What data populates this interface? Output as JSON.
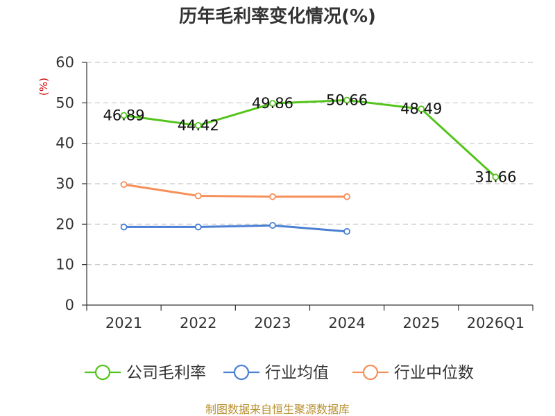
{
  "chart_data": {
    "type": "line",
    "title": "历年毛利率变化情况(%)",
    "ylabel": "(%)",
    "xlabel": "",
    "categories": [
      "2021",
      "2022",
      "2023",
      "2024",
      "2025",
      "2026Q1"
    ],
    "ylim": [
      0,
      60
    ],
    "yticks": [
      0,
      10,
      20,
      30,
      40,
      50,
      60
    ],
    "grid": true,
    "legend_position": "bottom",
    "series": [
      {
        "name": "公司毛利率",
        "color": "#52c41a",
        "values": [
          46.89,
          44.42,
          49.86,
          50.66,
          48.49,
          31.66
        ],
        "labels": [
          "46.89",
          "44.42",
          "49.86",
          "50.66",
          "48.49",
          "31.66"
        ]
      },
      {
        "name": "行业均值",
        "color": "#4a7fd4",
        "values": [
          19.3,
          19.3,
          19.7,
          18.2,
          null,
          null
        ]
      },
      {
        "name": "行业中位数",
        "color": "#f5905a",
        "values": [
          29.8,
          27.0,
          26.8,
          26.8,
          null,
          null
        ]
      }
    ]
  },
  "source": "制图数据来自恒生聚源数据库"
}
